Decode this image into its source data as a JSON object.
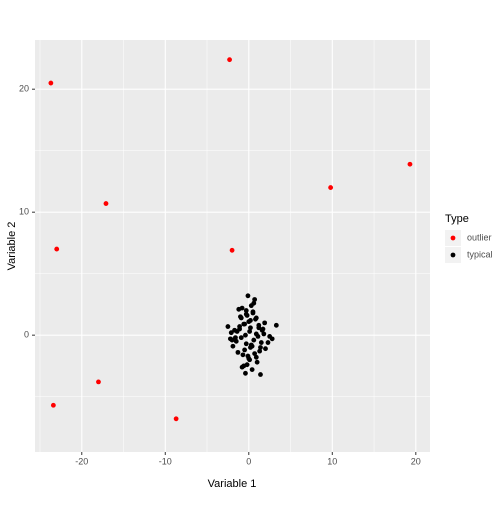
{
  "chart_data": {
    "type": "scatter",
    "xlabel": "Variable 1",
    "ylabel": "Variable 2",
    "xlim": [
      -25.6,
      21.7
    ],
    "ylim": [
      -9.5,
      24.0
    ],
    "xticks": [
      -20,
      -10,
      0,
      10,
      20
    ],
    "yticks": [
      0,
      10,
      20
    ],
    "xminor": [
      -25,
      -15,
      -5,
      5,
      15
    ],
    "yminor": [
      -5,
      5,
      15
    ],
    "grid": true,
    "legend_position": "right",
    "legend_title": "Type",
    "series": [
      {
        "name": "outlier",
        "color": "#ff0000",
        "x": [
          -23.7,
          -2.3,
          19.3,
          9.8,
          -17.1,
          -23.0,
          -2.0,
          -18.0,
          -23.4,
          -8.7
        ],
        "values": [
          20.5,
          22.4,
          13.9,
          12.0,
          10.7,
          7.0,
          6.9,
          -3.8,
          -5.7,
          -6.8
        ]
      },
      {
        "name": "typical",
        "color": "#000000",
        "x": [
          0.1,
          -0.5,
          1.2,
          -1.1,
          0.6,
          -0.2,
          0.9,
          -1.6,
          0.3,
          1.8,
          -0.8,
          0.0,
          -0.3,
          1.4,
          -2.1,
          0.7,
          -0.9,
          2.3,
          -0.4,
          0.2,
          1.0,
          -1.3,
          0.5,
          -0.6,
          1.6,
          -1.9,
          0.4,
          -0.1,
          2.8,
          -2.5,
          0.8,
          -0.7,
          1.1,
          -1.2,
          0.3,
          -0.4,
          1.9,
          -1.5,
          0.0,
          0.6,
          -0.2,
          1.3,
          -1.0,
          2.0,
          -0.5,
          0.9,
          -0.9,
          0.2,
          1.5,
          -1.7,
          3.3,
          -2.2,
          0.1,
          -0.3,
          0.7,
          1.2,
          -0.8,
          0.4,
          -1.4,
          2.5,
          0.5,
          -0.1,
          1.7,
          -0.6,
          -2.0,
          0.9,
          0.2,
          -1.1,
          1.4,
          -0.3
        ],
        "values": [
          0.3,
          -1.2,
          0.8,
          0.5,
          -0.4,
          1.6,
          -1.8,
          -0.2,
          2.4,
          0.1,
          -2.6,
          1.1,
          -0.7,
          -1.0,
          0.2,
          2.9,
          1.4,
          -0.6,
          -3.1,
          0.6,
          -2.2,
          -1.4,
          1.8,
          0.9,
          0.4,
          -0.9,
          -2.8,
          3.2,
          -0.3,
          0.7,
          1.3,
          -1.6,
          -0.1,
          2.1,
          -0.8,
          0.0,
          1.0,
          -0.5,
          -1.9,
          2.6,
          -2.4,
          -1.3,
          1.5,
          -1.1,
          0.9,
          0.1,
          -0.2,
          1.2,
          -0.6,
          0.4,
          0.8,
          -0.3,
          -2.0,
          1.7,
          -1.5,
          0.6,
          2.2,
          -0.9,
          0.3,
          -0.1,
          1.9,
          -1.7,
          0.5,
          -2.5,
          -0.4,
          1.4,
          -1.0,
          0.7,
          -3.2,
          2.0
        ]
      }
    ]
  }
}
